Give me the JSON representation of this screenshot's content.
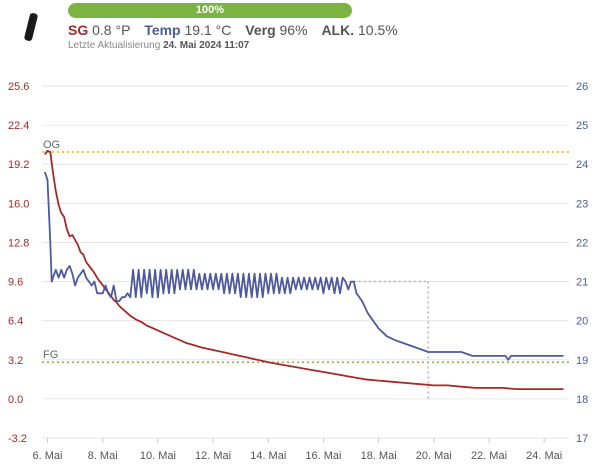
{
  "header": {
    "progress": {
      "label": "100%",
      "value": 100
    },
    "stats": [
      {
        "label": "SG",
        "value": "0.8 °P"
      },
      {
        "label": "Temp",
        "value": "19.1 °C"
      },
      {
        "label": "Verg",
        "value": "96%"
      },
      {
        "label": "ALK.",
        "value": "10.5%"
      }
    ],
    "last_update_label": "Letzte Aktualisierung",
    "last_update_value": "24. Mai 2024 11:07"
  },
  "colors": {
    "sg": "#a52a2a",
    "temp": "#4e5a9c",
    "progress": "#7cb342",
    "og_line": "#e6b800",
    "fg_line": "#8cb33e",
    "guide": "#b0b0c8",
    "grid": "#e6e6e6"
  },
  "chart_data": {
    "type": "line",
    "x_domain": [
      5.8,
      24.9
    ],
    "x_ticks": [
      {
        "value": 6,
        "label": "6. Mai"
      },
      {
        "value": 8,
        "label": "8. Mai"
      },
      {
        "value": 10,
        "label": "10. Mai"
      },
      {
        "value": 12,
        "label": "12. Mai"
      },
      {
        "value": 14,
        "label": "14. Mai"
      },
      {
        "value": 16,
        "label": "16. Mai"
      },
      {
        "value": 18,
        "label": "18. Mai"
      },
      {
        "value": 20,
        "label": "20. Mai"
      },
      {
        "value": 22,
        "label": "22. Mai"
      },
      {
        "value": 24,
        "label": "24. Mai"
      }
    ],
    "y_left": {
      "range": [
        -3.2,
        25.6
      ],
      "ticks": [
        -3.2,
        0.0,
        3.2,
        6.4,
        9.6,
        12.8,
        16.0,
        19.2,
        22.4,
        25.6
      ],
      "tick_labels": [
        "-3.2",
        "0.0",
        "3.2",
        "6.4",
        "9.6",
        "12.8",
        "16.0",
        "19.2",
        "22.4",
        "25.6"
      ]
    },
    "y_right": {
      "range": [
        17,
        26
      ],
      "ticks": [
        17,
        18,
        19,
        20,
        21,
        22,
        23,
        24,
        25,
        26
      ],
      "tick_labels": [
        "17",
        "18",
        "19",
        "20",
        "21",
        "22",
        "23",
        "24",
        "25",
        "26"
      ]
    },
    "grid": true,
    "reference_lines": [
      {
        "label": "OG",
        "value": 20.2
      },
      {
        "label": "FG",
        "value": 3.0
      }
    ],
    "guide_lines": {
      "x": 19.8,
      "y_right": 21.0
    },
    "series": [
      {
        "axis": "left",
        "color": "#a52a2a",
        "points": [
          [
            5.9,
            20.0
          ],
          [
            6.0,
            20.3
          ],
          [
            6.1,
            20.2
          ],
          [
            6.2,
            18.5
          ],
          [
            6.3,
            17.0
          ],
          [
            6.4,
            15.9
          ],
          [
            6.5,
            15.2
          ],
          [
            6.6,
            14.9
          ],
          [
            6.7,
            13.9
          ],
          [
            6.8,
            13.3
          ],
          [
            6.9,
            13.4
          ],
          [
            7.0,
            13.0
          ],
          [
            7.1,
            12.6
          ],
          [
            7.2,
            12.0
          ],
          [
            7.3,
            11.8
          ],
          [
            7.4,
            11.2
          ],
          [
            7.5,
            10.9
          ],
          [
            7.6,
            10.6
          ],
          [
            7.7,
            10.3
          ],
          [
            7.8,
            9.9
          ],
          [
            7.9,
            9.6
          ],
          [
            8.0,
            9.3
          ],
          [
            8.1,
            9.0
          ],
          [
            8.2,
            8.7
          ],
          [
            8.3,
            8.4
          ],
          [
            8.4,
            8.1
          ],
          [
            8.5,
            7.9
          ],
          [
            8.6,
            7.6
          ],
          [
            8.7,
            7.4
          ],
          [
            8.8,
            7.2
          ],
          [
            8.9,
            7.0
          ],
          [
            9.0,
            6.8
          ],
          [
            9.2,
            6.5
          ],
          [
            9.4,
            6.3
          ],
          [
            9.6,
            6.0
          ],
          [
            9.8,
            5.8
          ],
          [
            10.0,
            5.6
          ],
          [
            10.2,
            5.4
          ],
          [
            10.4,
            5.2
          ],
          [
            10.6,
            5.0
          ],
          [
            10.8,
            4.8
          ],
          [
            11.0,
            4.6
          ],
          [
            11.3,
            4.4
          ],
          [
            11.6,
            4.2
          ],
          [
            12.0,
            4.0
          ],
          [
            12.4,
            3.8
          ],
          [
            12.8,
            3.6
          ],
          [
            13.2,
            3.4
          ],
          [
            13.6,
            3.2
          ],
          [
            14.0,
            3.0
          ],
          [
            14.5,
            2.8
          ],
          [
            15.0,
            2.6
          ],
          [
            15.5,
            2.4
          ],
          [
            16.0,
            2.2
          ],
          [
            16.5,
            2.0
          ],
          [
            17.0,
            1.8
          ],
          [
            17.5,
            1.6
          ],
          [
            18.0,
            1.5
          ],
          [
            18.5,
            1.4
          ],
          [
            19.0,
            1.3
          ],
          [
            19.5,
            1.2
          ],
          [
            20.0,
            1.1
          ],
          [
            20.5,
            1.1
          ],
          [
            21.0,
            1.0
          ],
          [
            21.5,
            0.9
          ],
          [
            22.0,
            0.9
          ],
          [
            22.5,
            0.9
          ],
          [
            23.0,
            0.8
          ],
          [
            23.5,
            0.8
          ],
          [
            24.0,
            0.8
          ],
          [
            24.5,
            0.8
          ],
          [
            24.7,
            0.8
          ]
        ]
      },
      {
        "axis": "right",
        "color": "#4e5a9c",
        "points": [
          [
            5.9,
            23.8
          ],
          [
            6.0,
            23.6
          ],
          [
            6.1,
            22.0
          ],
          [
            6.15,
            21.0
          ],
          [
            6.2,
            21.1
          ],
          [
            6.3,
            21.3
          ],
          [
            6.4,
            21.1
          ],
          [
            6.5,
            21.3
          ],
          [
            6.6,
            21.1
          ],
          [
            6.7,
            21.3
          ],
          [
            6.8,
            21.4
          ],
          [
            6.9,
            21.2
          ],
          [
            7.0,
            20.9
          ],
          [
            7.1,
            21.1
          ],
          [
            7.2,
            21.2
          ],
          [
            7.3,
            21.3
          ],
          [
            7.4,
            21.1
          ],
          [
            7.5,
            21.0
          ],
          [
            7.6,
            20.9
          ],
          [
            7.7,
            21.0
          ],
          [
            7.8,
            20.7
          ],
          [
            7.9,
            20.7
          ],
          [
            8.0,
            20.7
          ],
          [
            8.1,
            20.9
          ],
          [
            8.2,
            20.7
          ],
          [
            8.3,
            20.6
          ],
          [
            8.4,
            20.9
          ],
          [
            8.5,
            20.5
          ],
          [
            8.6,
            20.5
          ],
          [
            8.7,
            20.6
          ],
          [
            8.8,
            20.6
          ],
          [
            8.9,
            20.7
          ],
          [
            9.0,
            20.6
          ],
          [
            9.1,
            21.3
          ],
          [
            9.2,
            20.6
          ],
          [
            9.3,
            21.3
          ],
          [
            9.4,
            20.6
          ],
          [
            9.5,
            21.3
          ],
          [
            9.6,
            20.7
          ],
          [
            9.7,
            21.3
          ],
          [
            9.8,
            20.6
          ],
          [
            9.9,
            21.3
          ],
          [
            10.0,
            20.6
          ],
          [
            10.1,
            21.3
          ],
          [
            10.2,
            20.7
          ],
          [
            10.3,
            21.3
          ],
          [
            10.4,
            20.7
          ],
          [
            10.5,
            21.3
          ],
          [
            10.6,
            20.7
          ],
          [
            10.7,
            21.3
          ],
          [
            10.8,
            20.8
          ],
          [
            10.9,
            21.3
          ],
          [
            11.0,
            20.8
          ],
          [
            11.1,
            21.3
          ],
          [
            11.2,
            20.8
          ],
          [
            11.3,
            21.3
          ],
          [
            11.4,
            20.8
          ],
          [
            11.5,
            21.2
          ],
          [
            11.6,
            20.8
          ],
          [
            11.7,
            21.2
          ],
          [
            11.8,
            20.8
          ],
          [
            11.9,
            21.2
          ],
          [
            12.0,
            20.8
          ],
          [
            12.1,
            21.2
          ],
          [
            12.2,
            20.8
          ],
          [
            12.3,
            21.2
          ],
          [
            12.4,
            20.7
          ],
          [
            12.5,
            21.2
          ],
          [
            12.6,
            20.7
          ],
          [
            12.7,
            21.2
          ],
          [
            12.8,
            20.7
          ],
          [
            12.9,
            21.2
          ],
          [
            13.0,
            20.6
          ],
          [
            13.1,
            21.2
          ],
          [
            13.2,
            20.6
          ],
          [
            13.3,
            21.2
          ],
          [
            13.4,
            20.6
          ],
          [
            13.5,
            21.2
          ],
          [
            13.6,
            20.6
          ],
          [
            13.7,
            21.2
          ],
          [
            13.8,
            20.6
          ],
          [
            13.9,
            21.2
          ],
          [
            14.0,
            20.7
          ],
          [
            14.1,
            21.2
          ],
          [
            14.2,
            20.7
          ],
          [
            14.3,
            21.2
          ],
          [
            14.4,
            20.7
          ],
          [
            14.5,
            21.1
          ],
          [
            14.6,
            20.7
          ],
          [
            14.7,
            21.1
          ],
          [
            14.8,
            20.7
          ],
          [
            14.9,
            21.1
          ],
          [
            15.0,
            20.8
          ],
          [
            15.1,
            21.1
          ],
          [
            15.2,
            20.8
          ],
          [
            15.3,
            21.1
          ],
          [
            15.4,
            20.8
          ],
          [
            15.5,
            21.1
          ],
          [
            15.6,
            20.8
          ],
          [
            15.7,
            21.1
          ],
          [
            15.8,
            20.8
          ],
          [
            15.9,
            21.1
          ],
          [
            16.0,
            20.7
          ],
          [
            16.1,
            21.1
          ],
          [
            16.2,
            20.8
          ],
          [
            16.3,
            21.1
          ],
          [
            16.4,
            20.7
          ],
          [
            16.5,
            21.1
          ],
          [
            16.6,
            20.7
          ],
          [
            16.7,
            21.1
          ],
          [
            16.8,
            21.0
          ],
          [
            16.9,
            20.8
          ],
          [
            17.0,
            21.0
          ],
          [
            17.1,
            21.0
          ],
          [
            17.2,
            20.7
          ],
          [
            17.4,
            20.5
          ],
          [
            17.6,
            20.2
          ],
          [
            17.8,
            20.0
          ],
          [
            18.0,
            19.8
          ],
          [
            18.3,
            19.6
          ],
          [
            18.6,
            19.5
          ],
          [
            19.0,
            19.4
          ],
          [
            19.4,
            19.3
          ],
          [
            19.8,
            19.2
          ],
          [
            20.2,
            19.2
          ],
          [
            20.6,
            19.2
          ],
          [
            21.0,
            19.2
          ],
          [
            21.4,
            19.1
          ],
          [
            21.8,
            19.1
          ],
          [
            22.2,
            19.1
          ],
          [
            22.6,
            19.1
          ],
          [
            22.7,
            19.0
          ],
          [
            22.8,
            19.1
          ],
          [
            23.2,
            19.1
          ],
          [
            23.6,
            19.1
          ],
          [
            24.0,
            19.1
          ],
          [
            24.4,
            19.1
          ],
          [
            24.7,
            19.1
          ]
        ]
      }
    ]
  }
}
